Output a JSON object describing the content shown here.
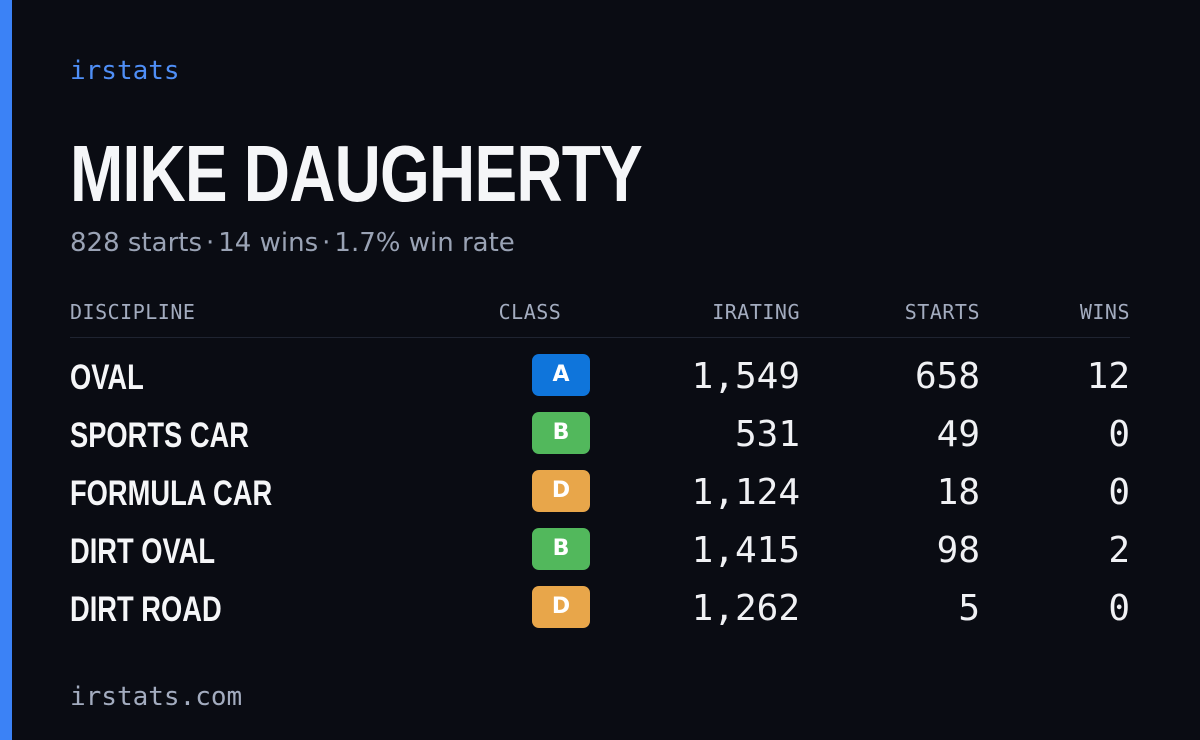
{
  "brand": "irstats",
  "driver": {
    "name": "MIKE DAUGHERTY",
    "starts_text": "828 starts",
    "wins_text": "14 wins",
    "win_rate_text": "1.7% win rate",
    "separator": "·"
  },
  "table": {
    "headers": {
      "discipline": "DISCIPLINE",
      "class": "CLASS",
      "irating": "IRATING",
      "starts": "STARTS",
      "wins": "WINS"
    },
    "rows": [
      {
        "discipline": "OVAL",
        "class": "A",
        "class_color": "#0f75db",
        "irating": "1,549",
        "starts": "658",
        "wins": "12"
      },
      {
        "discipline": "SPORTS CAR",
        "class": "B",
        "class_color": "#52b85c",
        "irating": "531",
        "starts": "49",
        "wins": "0"
      },
      {
        "discipline": "FORMULA CAR",
        "class": "D",
        "class_color": "#e8a64a",
        "irating": "1,124",
        "starts": "18",
        "wins": "0"
      },
      {
        "discipline": "DIRT OVAL",
        "class": "B",
        "class_color": "#52b85c",
        "irating": "1,415",
        "starts": "98",
        "wins": "2"
      },
      {
        "discipline": "DIRT ROAD",
        "class": "D",
        "class_color": "#e8a64a",
        "irating": "1,262",
        "starts": "5",
        "wins": "0"
      }
    ]
  },
  "footer": {
    "domain": "irstats.com"
  },
  "colors": {
    "accent": "#3b82f6",
    "background": "#0a0c13"
  }
}
